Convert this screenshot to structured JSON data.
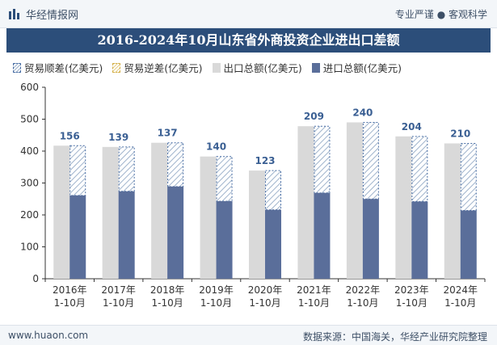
{
  "header": {
    "brand": "华经情报网",
    "slogan": "专业严谨 ● 客观科学",
    "title": "2016-2024年10月山东省外商投资企业进出口差额"
  },
  "legend": {
    "surplus": "贸易顺差(亿美元)",
    "deficit": "贸易逆差(亿美元)",
    "export": "出口总额(亿美元)",
    "import": "进口总额(亿美元)"
  },
  "footer": {
    "url": "www.huaon.com",
    "source": "数据来源：中国海关，华经产业研究院整理"
  },
  "chart_data": {
    "type": "bar",
    "categories": [
      "2016年\n1-10月",
      "2017年\n1-10月",
      "2018年\n1-10月",
      "2019年\n1-10月",
      "2020年\n1-10月",
      "2021年\n1-10月",
      "2022年\n1-10月",
      "2023年\n1-10月",
      "2024年\n1-10月"
    ],
    "series": [
      {
        "name": "出口总额(亿美元)",
        "values": [
          417,
          413,
          426,
          383,
          339,
          478,
          490,
          446,
          424
        ]
      },
      {
        "name": "进口总额(亿美元)",
        "values": [
          261,
          274,
          289,
          243,
          216,
          269,
          250,
          242,
          214
        ]
      },
      {
        "name": "贸易顺差(亿美元)",
        "values": [
          156,
          139,
          137,
          140,
          123,
          209,
          240,
          204,
          210
        ]
      }
    ],
    "ylim": [
      0,
      600
    ],
    "yticks": [
      0,
      100,
      200,
      300,
      400,
      500,
      600
    ],
    "grid": false,
    "legend_position": "top",
    "colors": {
      "export": "#d9d9d9",
      "import": "#5a6e9a",
      "surplus_hatch": "#9fb3cc",
      "surplus_border": "#4a6fa5",
      "label": "#3a5f93"
    }
  }
}
